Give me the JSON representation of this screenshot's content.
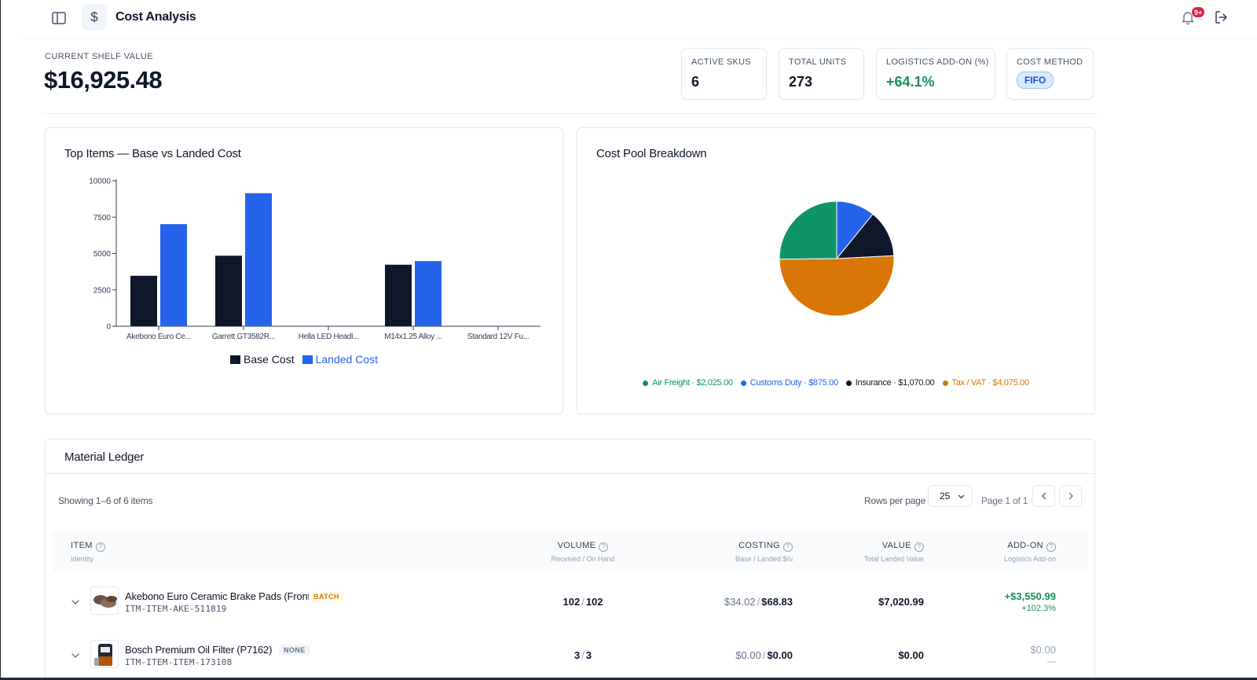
{
  "header": {
    "title": "Cost Analysis",
    "app_icon": "dollar-icon",
    "notification_badge": "9+"
  },
  "summary": {
    "shelf_label": "CURRENT SHELF VALUE",
    "shelf_value": "$16,925.48",
    "kpis": [
      {
        "label": "ACTIVE SKUS",
        "value": "6"
      },
      {
        "label": "TOTAL UNITS",
        "value": "273"
      },
      {
        "label": "LOGISTICS ADD-ON (%)",
        "value": "+64.1%"
      },
      {
        "label": "COST METHOD",
        "value": "FIFO"
      }
    ]
  },
  "bar_chart": {
    "title": "Top Items — Base vs Landed Cost"
  },
  "pie_chart": {
    "title": "Cost Pool Breakdown"
  },
  "chart_data": [
    {
      "type": "bar",
      "title": "Top Items — Base vs Landed Cost",
      "categories": [
        "Akebono Euro Ce...",
        "Garrett GT3582R...",
        "Hella LED Headl...",
        "M14x1.25 Alloy ...",
        "Standard 12V Fu..."
      ],
      "series": [
        {
          "name": "Base Cost",
          "color": "#0f172a",
          "values": [
            3470,
            4850,
            0,
            4230,
            0
          ]
        },
        {
          "name": "Landed Cost",
          "color": "#2563eb",
          "values": [
            7020,
            9150,
            0,
            4480,
            0
          ]
        }
      ],
      "ylim": [
        0,
        10000
      ],
      "yticks": [
        0,
        2500,
        5000,
        7500,
        10000
      ],
      "legend": "bottom"
    },
    {
      "type": "pie",
      "title": "Cost Pool Breakdown",
      "slices": [
        {
          "label": "Air Freight",
          "value": 2025.0,
          "display": "Air Freight · $2,025.00",
          "color": "#0e9468"
        },
        {
          "label": "Customs Duty",
          "value": 875.0,
          "display": "Customs Duty · $875.00",
          "color": "#2563eb"
        },
        {
          "label": "Insurance",
          "value": 1070.0,
          "display": "Insurance · $1,070.00",
          "color": "#0f172a"
        },
        {
          "label": "Tax / VAT",
          "value": 4075.0,
          "display": "Tax / VAT · $4,075.00",
          "color": "#d97706"
        }
      ],
      "legend": "bottom"
    }
  ],
  "ledger": {
    "title": "Material Ledger",
    "showing": "Showing 1–6 of 6 items",
    "rows_per_page_label": "Rows per page",
    "rows_per_page_value": "25",
    "page_info": "Page 1 of 1",
    "columns": [
      {
        "label": "ITEM",
        "sub": "Identity"
      },
      {
        "label": "VOLUME",
        "sub": "Received / On Hand"
      },
      {
        "label": "COSTING",
        "sub": "Base / Landed $/u"
      },
      {
        "label": "VALUE",
        "sub": "Total Landed Value"
      },
      {
        "label": "ADD-ON",
        "sub": "Logistics Add-on"
      }
    ],
    "rows": [
      {
        "name": "Akebono Euro Ceramic Brake Pads (Front)",
        "tag": "BATCH",
        "sku": "ITM-ITEM-AKE-511819",
        "received": "102",
        "on_hand": "102",
        "base": "$34.02",
        "landed": "$68.83",
        "value": "$7,020.99",
        "addon_amt": "+$3,550.99",
        "addon_pct": "+102.3%"
      },
      {
        "name": "Bosch Premium Oil Filter (P7162)",
        "tag": "NONE",
        "sku": "ITM-ITEM-ITEM-173108",
        "received": "3",
        "on_hand": "3",
        "base": "$0.00",
        "landed": "$0.00",
        "value": "$0.00",
        "addon_amt": "$0.00",
        "addon_pct": "—"
      }
    ]
  }
}
